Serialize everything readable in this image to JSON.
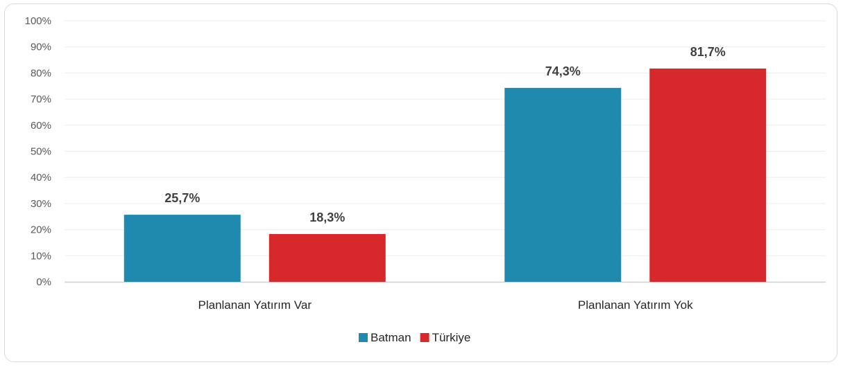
{
  "chart_data": {
    "type": "bar",
    "categories": [
      "Planlanan Yatırım Var",
      "Planlanan Yatırım Yok"
    ],
    "series": [
      {
        "name": "Batman",
        "values": [
          25.7,
          74.3
        ],
        "labels": [
          "25,7%",
          "74,3%"
        ],
        "color": "#1f8aad"
      },
      {
        "name": "Türkiye",
        "values": [
          18.3,
          81.7
        ],
        "labels": [
          "18,3%",
          "81,7%"
        ],
        "color": "#d7282b"
      }
    ],
    "yticks": [
      "0%",
      "10%",
      "20%",
      "30%",
      "40%",
      "50%",
      "60%",
      "70%",
      "80%",
      "90%",
      "100%"
    ],
    "ylim": [
      0,
      100
    ],
    "grid": true,
    "legend_position": "bottom"
  }
}
